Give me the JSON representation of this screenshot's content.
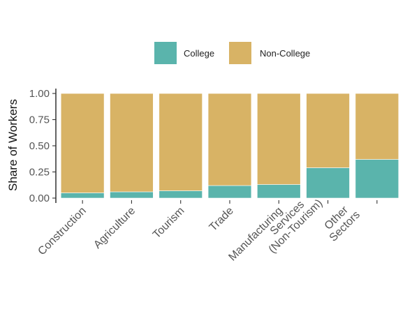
{
  "chart_data": {
    "type": "bar",
    "stacked": true,
    "orientation": "vertical",
    "categories": [
      "Construction",
      "Agriculture",
      "Tourism",
      "Trade",
      "Manufacturing",
      "Services\n(Non-Tourism)",
      "Other\nSectors"
    ],
    "series": [
      {
        "name": "College",
        "color": "#5ab4ac",
        "values": [
          0.05,
          0.06,
          0.07,
          0.12,
          0.13,
          0.29,
          0.37
        ]
      },
      {
        "name": "Non-College",
        "color": "#d8b365",
        "values": [
          0.95,
          0.94,
          0.93,
          0.88,
          0.87,
          0.71,
          0.63
        ]
      }
    ],
    "ylabel": "Share of Workers",
    "xlabel": "",
    "ylim": [
      0,
      1
    ],
    "yticks": [
      "0.00",
      "0.25",
      "0.50",
      "0.75",
      "1.00"
    ],
    "ytick_values": [
      0,
      0.25,
      0.5,
      0.75,
      1.0
    ],
    "legend_position": "top",
    "grid": false
  }
}
